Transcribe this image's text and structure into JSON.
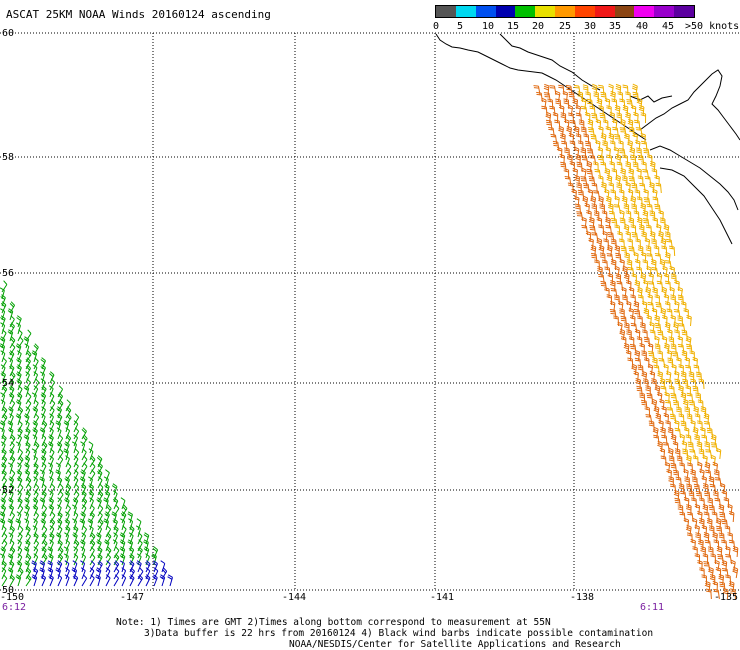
{
  "title": "ASCAT 25KM NOAA Winds 20160124 ascending",
  "legend": {
    "colors": [
      "#555555",
      "#00d8f0",
      "#0050f0",
      "#0000b0",
      "#00c000",
      "#e8e000",
      "#ff9900",
      "#ff4400",
      "#f01818",
      "#8b4513",
      "#f000f0",
      "#9900cc",
      "#5c00a0"
    ],
    "labels": [
      "0",
      "5",
      "10",
      "15",
      "20",
      "25",
      "30",
      "35",
      "40",
      "45",
      ">50 knots"
    ]
  },
  "lat_labels": [
    "60",
    "58",
    "56",
    "54",
    "52",
    "50"
  ],
  "lon_labels": [
    "-150",
    "-147",
    "-144",
    "-141",
    "-138",
    "-135"
  ],
  "time_labels": [
    "6:12",
    "6:11"
  ],
  "notes": [
    "Note: 1) Times are GMT 2)Times along bottom correspond to measurement at 55N",
    "3)Data buffer is 22 hrs from 20160124 4) Black wind barbs indicate possible contamination",
    "NOAA/NESDIS/Center for Satellite Applications and Research"
  ],
  "barb_colors": {
    "east_orange": "#e06a10",
    "east_yellow": "#f0b000",
    "west_green": "#00a000",
    "west_blue": "#0000c0"
  }
}
